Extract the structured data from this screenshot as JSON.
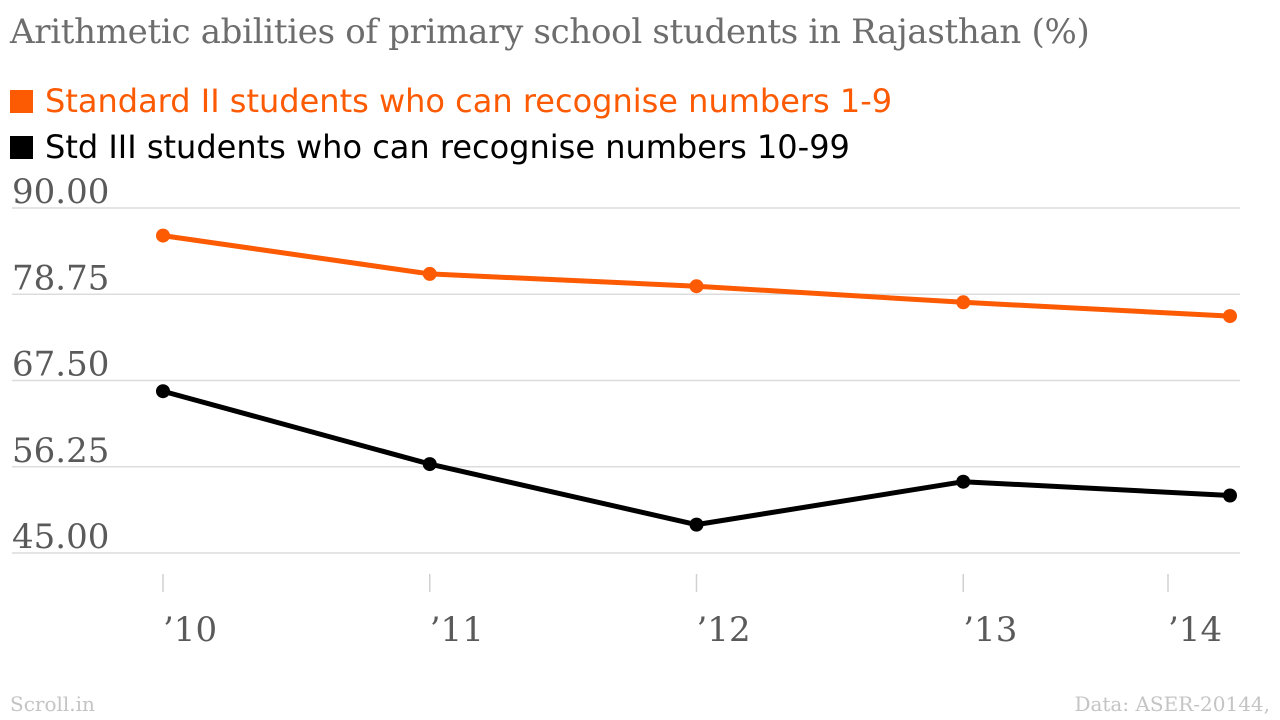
{
  "chart_data": {
    "type": "line",
    "title": "Arithmetic abilities of primary school students in Rajasthan (%)",
    "categories": [
      "’10",
      "’11",
      "’12",
      "’13",
      "’14"
    ],
    "series": [
      {
        "name": "Standard II students who can recognise numbers 1-9",
        "color": "#fc5a03",
        "values": [
          86.4,
          81.4,
          79.8,
          77.7,
          75.9
        ]
      },
      {
        "name": "Std III students who can recognise numbers 10-99",
        "color": "#000000",
        "values": [
          66.1,
          56.6,
          48.7,
          54.3,
          52.5
        ]
      }
    ],
    "yticks": [
      "90.00",
      "78.75",
      "67.50",
      "56.25",
      "45.00"
    ],
    "ylim": [
      45,
      90
    ],
    "grid": true,
    "legend": "top-left"
  },
  "footer": {
    "source_left": "Scroll.in",
    "source_right": "Data: ASER-20144,"
  }
}
